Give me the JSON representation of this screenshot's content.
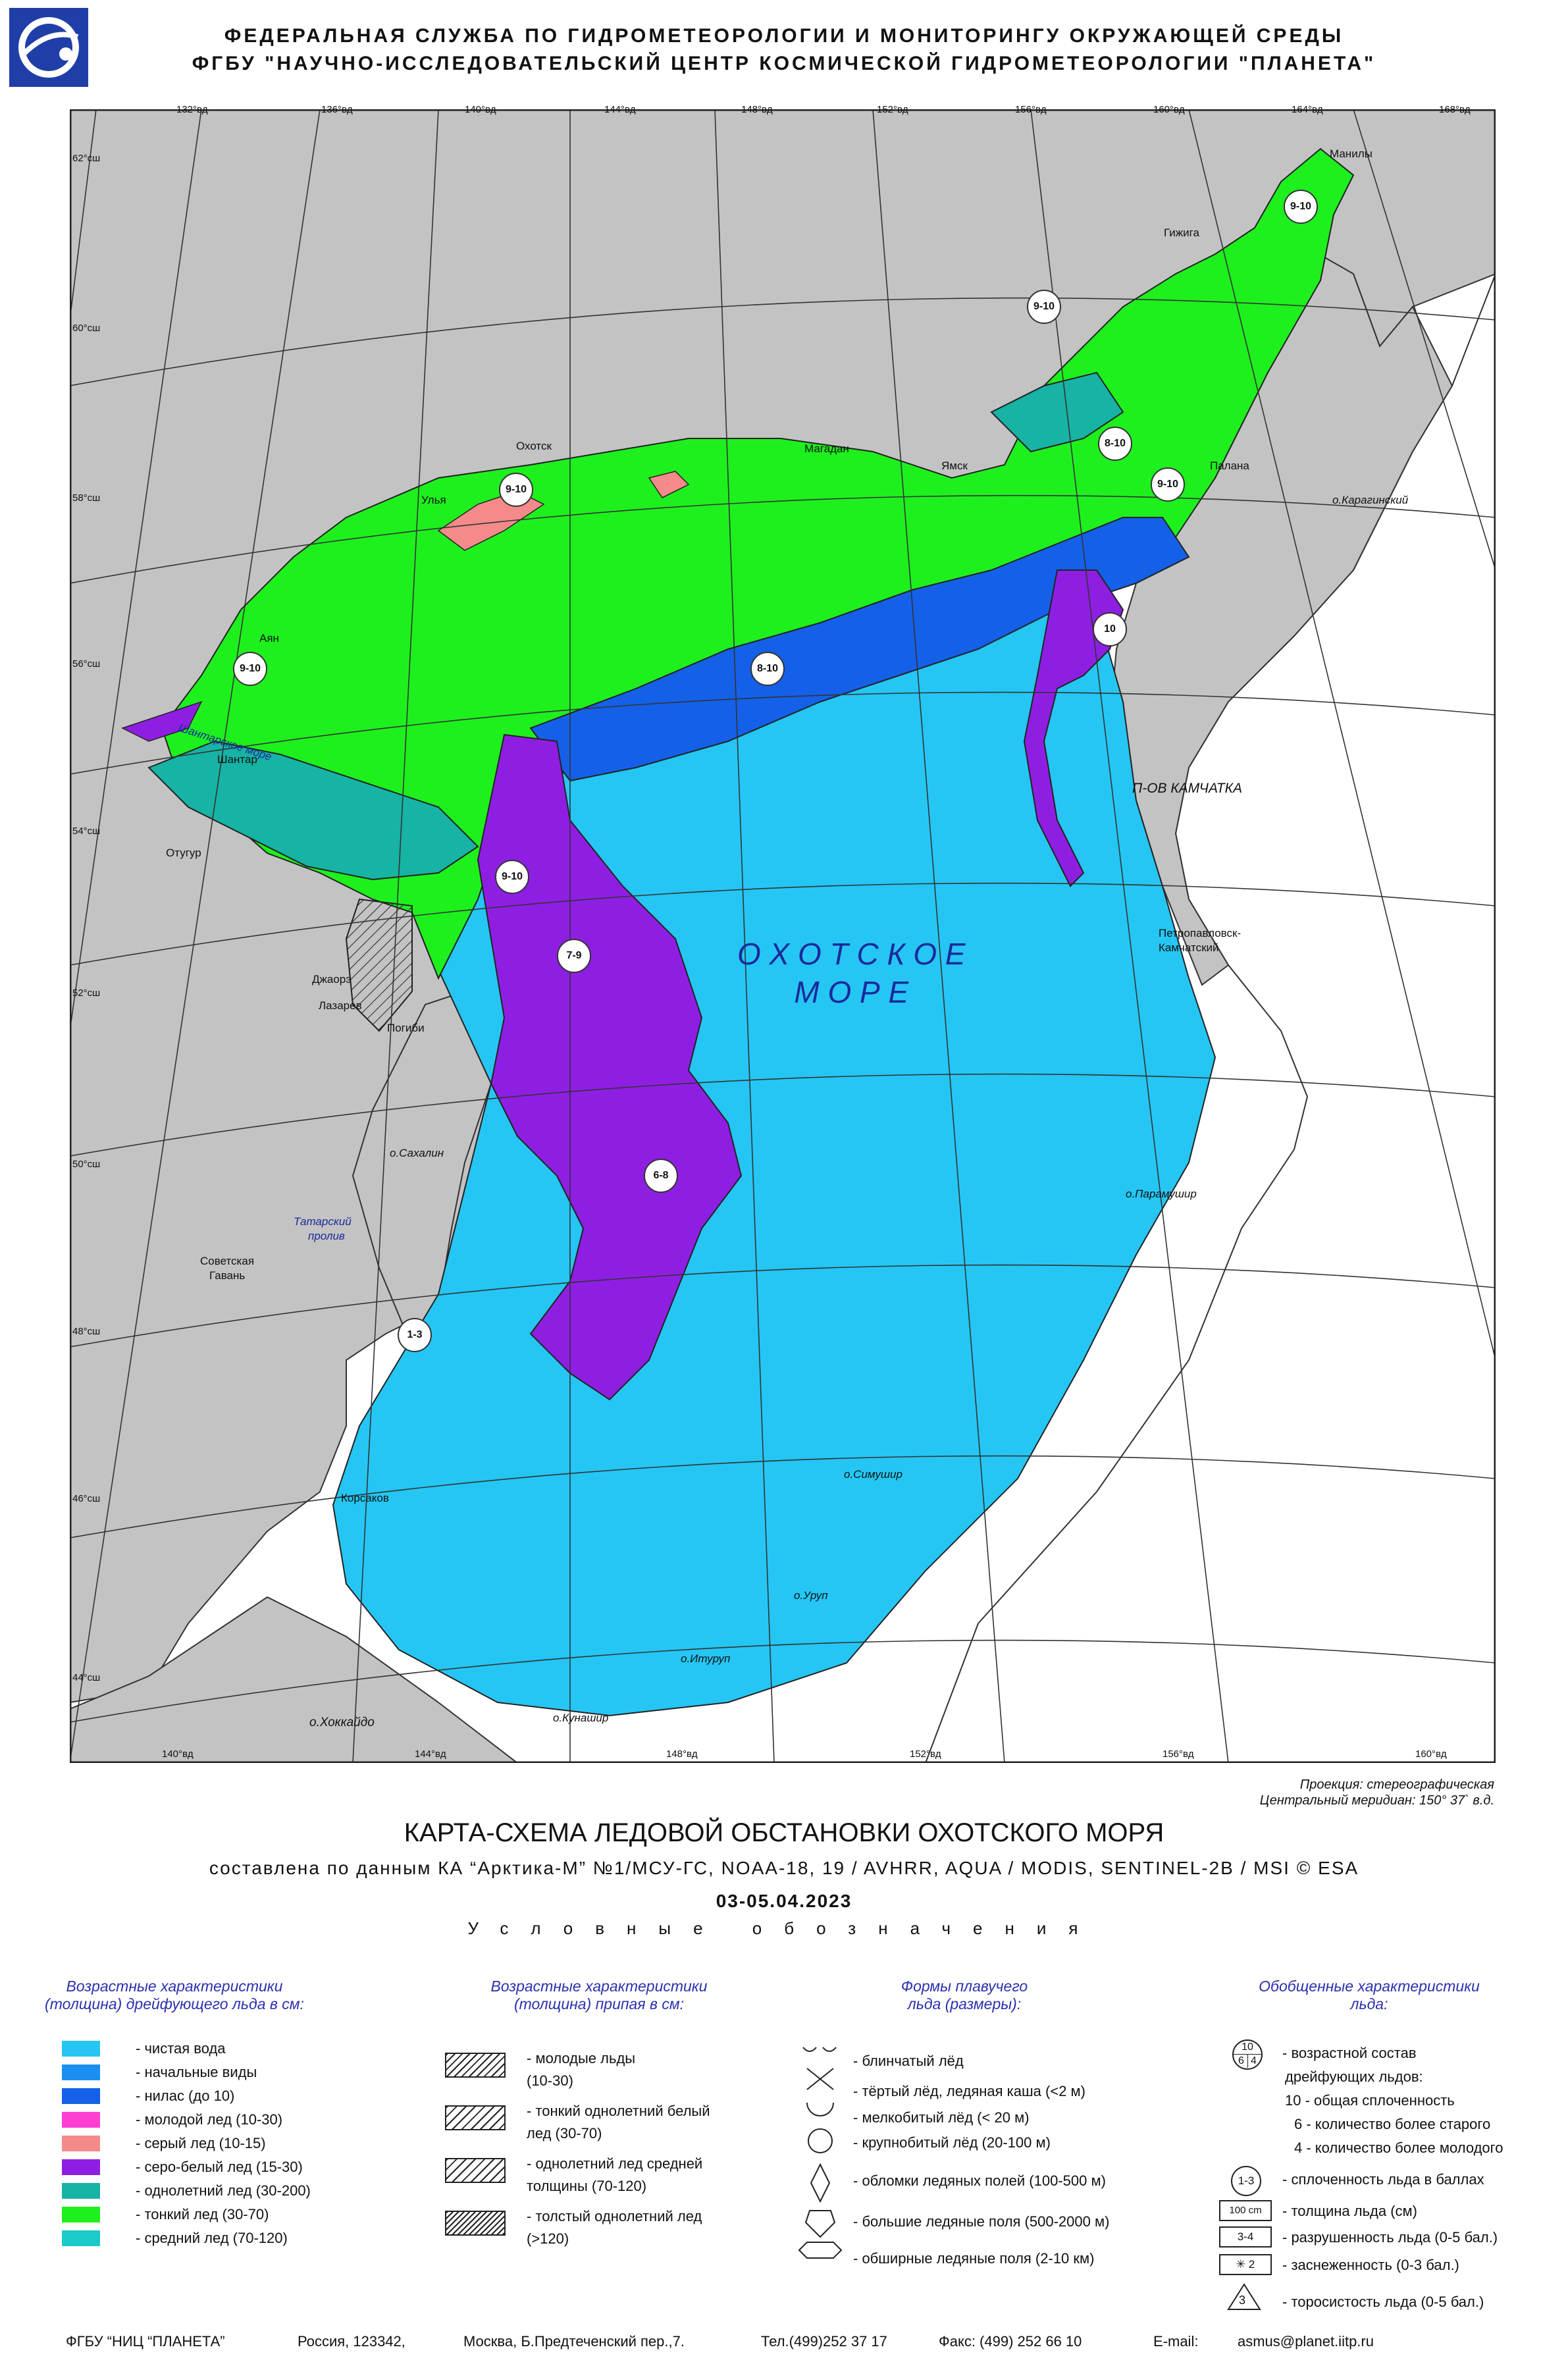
{
  "header": {
    "line1": "ФЕДЕРАЛЬНАЯ СЛУЖБА ПО ГИДРОМЕТЕОРОЛОГИИ И МОНИТОРИНГУ ОКРУЖАЮЩЕЙ СРЕДЫ",
    "line2": "ФГБУ \"НАУЧНО-ИССЛЕДОВАТЕЛЬСКИЙ ЦЕНТР КОСМИЧЕСКОЙ ГИДРОМЕТЕОРОЛОГИИ \"ПЛАНЕТА\""
  },
  "map": {
    "lon_labels_top": [
      "132°вд",
      "136°вд",
      "140°вд",
      "144°вд",
      "148°вд",
      "152°вд",
      "156°вд",
      "160°вд",
      "164°вд",
      "168°вд"
    ],
    "lon_labels_bottom": [
      "140°вд",
      "144°вд",
      "148°вд",
      "152°вд",
      "156°вд",
      "160°вд"
    ],
    "lat_labels": [
      "62°сш",
      "60°сш",
      "58°сш",
      "56°сш",
      "54°сш",
      "52°сш",
      "50°сш",
      "48°сш",
      "46°сш",
      "44°сш"
    ],
    "sea_name_1": "О Х О Т С К О Е",
    "sea_name_2": "М О Р Е",
    "places": {
      "manily": "Манилы",
      "gizhiga": "Гижига",
      "magadan": "Магадан",
      "okhotsk": "Охотск",
      "ulya": "Улья",
      "yamsk": "Ямск",
      "palana": "Палана",
      "karaginsky": "о.Карагинский",
      "ayan": "Аян",
      "shantar_sea": "Шантарское море",
      "shantar": "Шантар",
      "otugur": "Отугур",
      "kamchatka": "П-ОВ КАМЧАТКА",
      "petropavlovsk_1": "Петропавловск-",
      "petropavlovsk_2": "Камчатский",
      "dzhaore": "Джаорэ",
      "lazarev": "Лазарев",
      "pogibi": "Погиби",
      "sakhalin": "о.Сахалин",
      "tatar_1": "Татарский",
      "tatar_2": "пролив",
      "sovgavan_1": "Советская",
      "sovgavan_2": "Гавань",
      "paramushir": "о.Парамушир",
      "simushir": "о.Симушир",
      "korsakov": "Корсаков",
      "urup": "о.Уруп",
      "iturup": "о.Итуруп",
      "kunashir": "о.Кунашир",
      "hokkaido": "о.Хоккайдо"
    },
    "ice_labels": [
      "9-10",
      "9-10",
      "9-10",
      "8-10",
      "9-10",
      "9-10",
      "8-10",
      "10",
      "9-10",
      "7-9",
      "6-8",
      "1-3"
    ]
  },
  "meta": {
    "projection": "Проекция: стереографическая",
    "meridian": "Центральный меридиан: 150° 37` в.д."
  },
  "title": "КАРТА-СХЕМА ЛЕДОВОЙ ОБСТАНОВКИ ОХОТСКОГО МОРЯ",
  "subtitle": "составлена по данным КА “Арктика-М” №1/МСУ-ГС, NOAA-18, 19 / AVHRR, AQUA / MODIS, SENTINEL-2B / MSI © ESA",
  "date": "03-05.04.2023",
  "legend_title": "Условные обозначения",
  "legend": {
    "col1": {
      "head_1": "Возрастные характеристики",
      "head_2": "(толщина) дрейфующего льда в см:",
      "items": [
        {
          "label": "- чистая вода",
          "color": "#25c6f4"
        },
        {
          "label": "- начальные виды",
          "color": "#1a8ff0"
        },
        {
          "label": "- нилас (до 10)",
          "color": "#1560e8"
        },
        {
          "label": "- молодой лед (10-30)",
          "color": "#ff3fd2"
        },
        {
          "label": "- серый лед (10-15)",
          "color": "#f58a8a"
        },
        {
          "label": "- серо-белый лед (15-30)",
          "color": "#8f1ee3"
        },
        {
          "label": "- однолетний лед (30-200)",
          "color": "#17b3a4"
        },
        {
          "label": "- тонкий лед (30-70)",
          "color": "#1ef01e"
        },
        {
          "label": "- средний лед (70-120)",
          "color": "#1ccaca"
        }
      ]
    },
    "col2": {
      "head_1": "Возрастные характеристики",
      "head_2": "(толщина) припая в см:",
      "items": [
        {
          "l1": "- молодые льды",
          "l2": "(10-30)"
        },
        {
          "l1": "- тонкий однолетний белый",
          "l2": "лед (30-70)"
        },
        {
          "l1": "- однолетний лед средней",
          "l2": "толщины (70-120)"
        },
        {
          "l1": "- толстый однолетний лед",
          "l2": "(>120)"
        }
      ]
    },
    "col3": {
      "head_1": "Формы плавучего",
      "head_2": "льда (размеры):",
      "items": [
        "- блинчатый лёд",
        "- тёртый лёд, ледяная каша (<2 м)",
        "- мелкобитый лёд (< 20 м)",
        "- крупнобитый лёд (20-100 м)",
        "- обломки ледяных полей (100-500 м)",
        "- большие ледяные поля (500-2000 м)",
        "- обширные ледяные поля (2-10 км)"
      ]
    },
    "col4": {
      "head_1": "Обобщенные характеристики",
      "head_2": "льда:",
      "egg_top": "10",
      "egg_bl": "6",
      "egg_br": "4",
      "items": [
        "- возрастной состав",
        "дрейфующих льдов:",
        "10 - общая сплоченность",
        "6 - количество более старого",
        "4 - количество более молодого",
        "- сплоченность льда в баллах",
        "- толщина льда (см)",
        "- разрушенность льда (0-5 бал.)",
        "- заснеженность (0-3 бал.)",
        "- торосистость льда (0-5 бал.)"
      ],
      "sym_concentration": "1-3",
      "sym_thickness": "100 cm",
      "sym_decay": "3-4",
      "sym_snow": "✳ 2",
      "sym_ridging": "3"
    }
  },
  "footer": {
    "org": "ФГБУ “НИЦ “ПЛАНЕТА”",
    "country": "Россия, 123342,",
    "address": "Москва, Б.Предтеченский пер.,7.",
    "tel": "Тел.(499)252 37 17",
    "fax": "Факс: (499) 252 66 10",
    "email_label": "E-mail:",
    "email": "asmus@planet.iitp.ru"
  },
  "colors": {
    "land": "#c3c3c3",
    "open_water": "#25c6f4",
    "initial": "#1a8ff0",
    "nilas": "#1560e8",
    "grey_white": "#8f1ee3",
    "first_year": "#17b3a4",
    "thin": "#1ef01e",
    "grey": "#f58a8a",
    "young": "#ff3fd2"
  }
}
